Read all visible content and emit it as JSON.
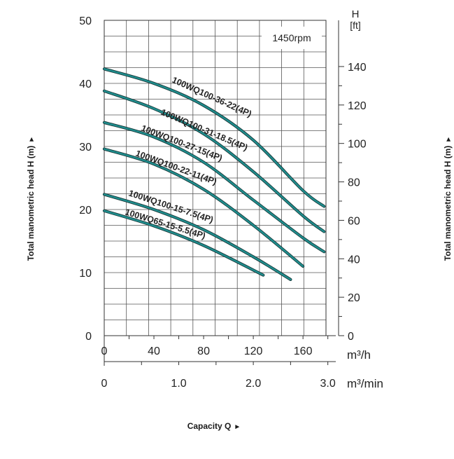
{
  "chart_data": {
    "type": "line",
    "speed_label": "1450rpm",
    "ylabel": "Total manometric head H (m)",
    "ylabel_arrow": "►",
    "ylabel_clipped": "Total manometric head H (m)",
    "xlabel": "Capacity Q",
    "xlabel_arrow": "►",
    "y_left": {
      "unit": "",
      "ticks": [
        "0",
        "10",
        "20",
        "30",
        "40",
        "50"
      ],
      "lim": [
        0,
        50
      ]
    },
    "y_right": {
      "unit_line1": "H",
      "unit_line2": "[ft]",
      "ticks": [
        "0",
        "20",
        "40",
        "60",
        "80",
        "100",
        "120",
        "140"
      ]
    },
    "x_m3h": {
      "unit": "m³/h",
      "ticks": [
        "0",
        "40",
        "80",
        "120",
        "160"
      ],
      "lim": [
        0,
        180
      ]
    },
    "x_m3min": {
      "unit": "m³/min",
      "ticks": [
        "0",
        "1.0",
        "2.0",
        "3.0"
      ]
    },
    "grid": true,
    "series": [
      {
        "name": "100WQ100-36-22(4P)",
        "points": [
          [
            0,
            42.3
          ],
          [
            40,
            40.0
          ],
          [
            80,
            36.5
          ],
          [
            120,
            31.0
          ],
          [
            160,
            23.0
          ],
          [
            177,
            20.5
          ]
        ]
      },
      {
        "name": "100WQ100-31-18.5(4P)",
        "points": [
          [
            0,
            38.8
          ],
          [
            40,
            36.0
          ],
          [
            80,
            32.0
          ],
          [
            120,
            26.0
          ],
          [
            160,
            19.0
          ],
          [
            177,
            16.5
          ]
        ]
      },
      {
        "name": "100WQ100-27-15(4P)",
        "points": [
          [
            0,
            33.8
          ],
          [
            40,
            31.5
          ],
          [
            80,
            27.5
          ],
          [
            120,
            21.5
          ],
          [
            160,
            15.5
          ],
          [
            177,
            13.3
          ]
        ]
      },
      {
        "name": "100WQ100-22-11(4P)",
        "points": [
          [
            0,
            29.6
          ],
          [
            40,
            27.2
          ],
          [
            80,
            23.2
          ],
          [
            120,
            17.5
          ],
          [
            160,
            11.0
          ]
        ]
      },
      {
        "name": "100WQ100-15-7.5(4P)",
        "points": [
          [
            0,
            22.4
          ],
          [
            40,
            20.0
          ],
          [
            80,
            16.8
          ],
          [
            120,
            12.5
          ],
          [
            150,
            8.9
          ]
        ]
      },
      {
        "name": "100WQ65-15-5.5(4P)",
        "points": [
          [
            0,
            19.8
          ],
          [
            40,
            17.4
          ],
          [
            80,
            14.3
          ],
          [
            128,
            9.6
          ]
        ]
      }
    ],
    "curve_color": "#1f8f8f"
  }
}
